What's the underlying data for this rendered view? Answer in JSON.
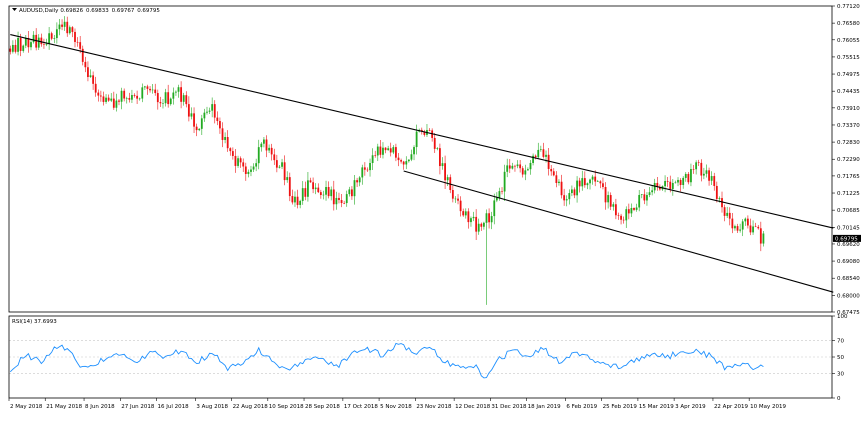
{
  "chart_data": [
    {
      "type": "candlestick",
      "title": "AUDUSD,Daily",
      "ohlc_values": [
        "0.69826",
        "0.69833",
        "0.69767",
        "0.69795"
      ],
      "colors": {
        "up": "#22aa22",
        "down": "#ee1111",
        "trendline": "#000000",
        "price_tag_bg": "#000000",
        "grid": "#c8c8c8"
      },
      "y_ticks": [
        "0.77120",
        "0.76580",
        "0.76055",
        "0.75515",
        "0.74975",
        "0.74435",
        "0.73910",
        "0.73370",
        "0.72830",
        "0.72290",
        "0.71765",
        "0.71225",
        "0.70685",
        "0.70145",
        "0.69620",
        "0.69080",
        "0.68540",
        "0.68000",
        "0.67475"
      ],
      "current_price": "0.69795",
      "x_ticks": [
        "2 May 2018",
        "21 May 2018",
        "8 Jun 2018",
        "27 Jun 2018",
        "16 Jul 2018",
        "3 Aug 2018",
        "22 Aug 2018",
        "10 Sep 2018",
        "28 Sep 2018",
        "17 Oct 2018",
        "5 Nov 2018",
        "23 Nov 2018",
        "12 Dec 2018",
        "31 Dec 2018",
        "18 Jan 2019",
        "6 Feb 2019",
        "25 Feb 2019",
        "15 Mar 2019",
        "3 Apr 2019",
        "22 Apr 2019",
        "10 May 2019"
      ],
      "ylim": [
        0.67475,
        0.7712
      ],
      "close_keypoints": [
        [
          0,
          0.7585
        ],
        [
          12,
          0.7605
        ],
        [
          18,
          0.762
        ],
        [
          20,
          0.766
        ],
        [
          26,
          0.759
        ],
        [
          33,
          0.745
        ],
        [
          38,
          0.7395
        ],
        [
          42,
          0.743
        ],
        [
          52,
          0.7445
        ],
        [
          58,
          0.741
        ],
        [
          65,
          0.744
        ],
        [
          72,
          0.733
        ],
        [
          78,
          0.739
        ],
        [
          85,
          0.724
        ],
        [
          92,
          0.718
        ],
        [
          98,
          0.728
        ],
        [
          105,
          0.72
        ],
        [
          110,
          0.709
        ],
        [
          115,
          0.714
        ],
        [
          122,
          0.713
        ],
        [
          128,
          0.708
        ],
        [
          135,
          0.717
        ],
        [
          140,
          0.724
        ],
        [
          146,
          0.728
        ],
        [
          152,
          0.722
        ],
        [
          158,
          0.731
        ],
        [
          163,
          0.73
        ],
        [
          168,
          0.717
        ],
        [
          174,
          0.708
        ],
        [
          180,
          0.702
        ],
        [
          184,
          0.704
        ],
        [
          188,
          0.709
        ],
        [
          193,
          0.722
        ],
        [
          199,
          0.718
        ],
        [
          205,
          0.7265
        ],
        [
          210,
          0.7185
        ],
        [
          215,
          0.709
        ],
        [
          220,
          0.7155
        ],
        [
          226,
          0.7165
        ],
        [
          232,
          0.709
        ],
        [
          236,
          0.7045
        ],
        [
          242,
          0.709
        ],
        [
          248,
          0.715
        ],
        [
          254,
          0.7145
        ],
        [
          260,
          0.716
        ],
        [
          266,
          0.7205
        ],
        [
          270,
          0.718
        ],
        [
          276,
          0.706
        ],
        [
          280,
          0.701
        ],
        [
          284,
          0.704
        ],
        [
          288,
          0.6995
        ],
        [
          291,
          0.698
        ]
      ],
      "lowest_low": 0.677,
      "highest_high": 0.768,
      "trendlines": [
        {
          "start_bar": 0,
          "start_price": 0.7622,
          "end_bar": 318,
          "end_price": 0.7012
        },
        {
          "start_bar": 152,
          "start_price": 0.7192,
          "end_bar": 318,
          "end_price": 0.681
        }
      ],
      "rsi_label": "RSI(14) 37.6993",
      "rsi_ticks": [
        "100",
        "70",
        "50",
        "30",
        "0"
      ],
      "rsi_color": "#1e90ff",
      "rsi_ylim": [
        0,
        100
      ],
      "rsi_keypoints": [
        [
          0,
          35
        ],
        [
          6,
          52
        ],
        [
          12,
          45
        ],
        [
          18,
          62
        ],
        [
          22,
          60
        ],
        [
          26,
          42
        ],
        [
          30,
          35
        ],
        [
          36,
          48
        ],
        [
          42,
          55
        ],
        [
          48,
          42
        ],
        [
          54,
          56
        ],
        [
          60,
          50
        ],
        [
          66,
          58
        ],
        [
          72,
          44
        ],
        [
          78,
          55
        ],
        [
          84,
          36
        ],
        [
          90,
          44
        ],
        [
          96,
          58
        ],
        [
          102,
          42
        ],
        [
          108,
          35
        ],
        [
          114,
          46
        ],
        [
          120,
          50
        ],
        [
          126,
          38
        ],
        [
          132,
          54
        ],
        [
          138,
          60
        ],
        [
          144,
          52
        ],
        [
          150,
          66
        ],
        [
          156,
          55
        ],
        [
          162,
          62
        ],
        [
          168,
          44
        ],
        [
          174,
          38
        ],
        [
          180,
          37
        ],
        [
          184,
          24
        ],
        [
          188,
          45
        ],
        [
          194,
          58
        ],
        [
          200,
          50
        ],
        [
          206,
          60
        ],
        [
          212,
          44
        ],
        [
          218,
          56
        ],
        [
          224,
          48
        ],
        [
          230,
          42
        ],
        [
          236,
          38
        ],
        [
          242,
          47
        ],
        [
          248,
          55
        ],
        [
          254,
          50
        ],
        [
          260,
          58
        ],
        [
          266,
          56
        ],
        [
          270,
          52
        ],
        [
          276,
          37
        ],
        [
          282,
          42
        ],
        [
          288,
          36
        ],
        [
          291,
          38
        ]
      ]
    }
  ]
}
